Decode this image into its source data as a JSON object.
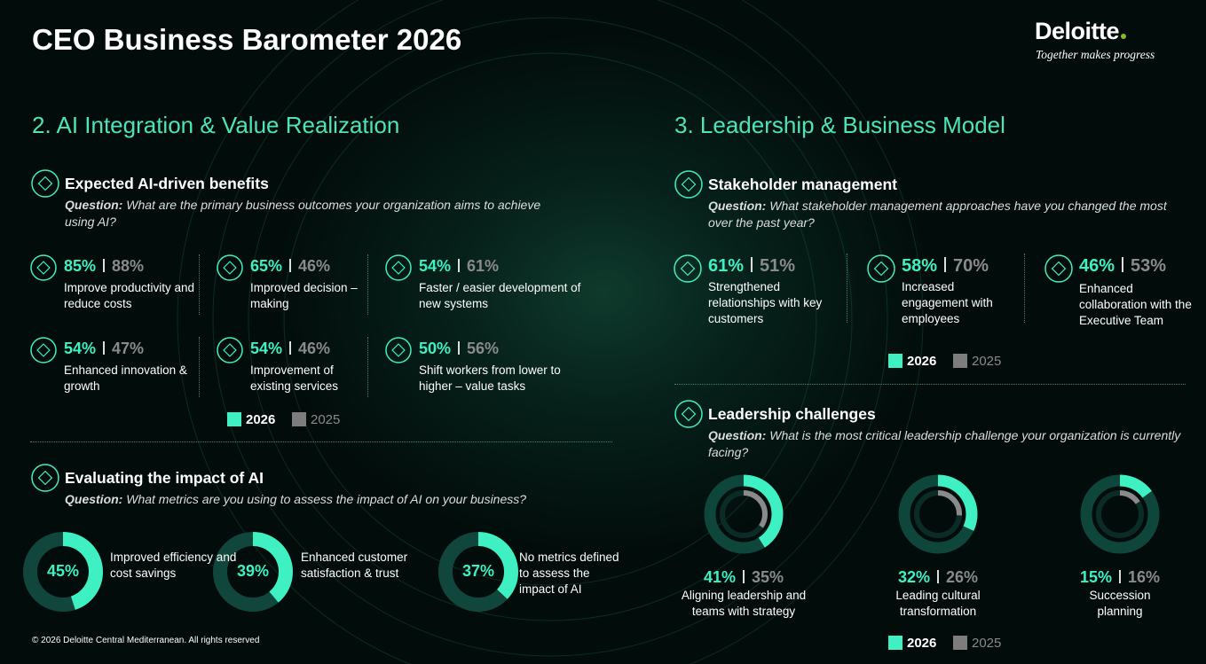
{
  "header": {
    "title": "CEO Business Barometer 2026",
    "brand": "Deloitte",
    "tagline": "Together makes progress"
  },
  "sections": [
    {
      "title": "2. AI Integration & Value Realization",
      "blocks": [
        {
          "heading": "Expected AI-driven benefits",
          "question_label": "Question:",
          "question": "What are the primary business outcomes your organization aims to achieve using AI?",
          "items": [
            {
              "current": {
                "value": 85,
                "label": "85%"
              },
              "previous": {
                "value": 88,
                "label": "88%"
              },
              "label": "Improve productivity and reduce costs"
            },
            {
              "current": {
                "value": 65,
                "label": "65%"
              },
              "previous": {
                "value": 46,
                "label": "46%"
              },
              "label": "Improved decision – making"
            },
            {
              "current": {
                "value": 54,
                "label": "54%"
              },
              "previous": {
                "value": 61,
                "label": "61%"
              },
              "label": "Faster / easier development of new systems"
            },
            {
              "current": {
                "value": 54,
                "label": "54%"
              },
              "previous": {
                "value": 47,
                "label": "47%"
              },
              "label": "Enhanced innovation & growth"
            },
            {
              "current": {
                "value": 54,
                "label": "54%"
              },
              "previous": {
                "value": 46,
                "label": "46%"
              },
              "label": "Improvement of existing services"
            },
            {
              "current": {
                "value": 50,
                "label": "50%"
              },
              "previous": {
                "value": 56,
                "label": "56%"
              },
              "label": "Shift workers from lower to higher – value tasks"
            }
          ],
          "legend": [
            {
              "name": "2026",
              "color": "#3ff0c3"
            },
            {
              "name": "2025",
              "color": "#7d7d7d"
            }
          ]
        },
        {
          "heading": "Evaluating the impact of AI",
          "question_label": "Question:",
          "question": "What metrics are you using to assess the impact of AI on your business?",
          "donuts": [
            {
              "current": {
                "value": 45,
                "label": "45%"
              },
              "label": "Improved efficiency and cost savings"
            },
            {
              "current": {
                "value": 39,
                "label": "39%"
              },
              "label": "Enhanced customer satisfaction & trust"
            },
            {
              "current": {
                "value": 37,
                "label": "37%"
              },
              "label": "No metrics defined to assess the impact of AI"
            }
          ]
        }
      ]
    },
    {
      "title": "3. Leadership & Business Model",
      "blocks": [
        {
          "heading": "Stakeholder management",
          "question_label": "Question:",
          "question": "What stakeholder management approaches have you changed the most over the past year?",
          "items": [
            {
              "current": {
                "value": 61,
                "label": "61%"
              },
              "previous": {
                "value": 51,
                "label": "51%"
              },
              "label": "Strengthened relationships with key customers"
            },
            {
              "current": {
                "value": 58,
                "label": "58%"
              },
              "previous": {
                "value": 70,
                "label": "70%"
              },
              "label": "Increased engagement with employees"
            },
            {
              "current": {
                "value": 46,
                "label": "46%"
              },
              "previous": {
                "value": 53,
                "label": "53%"
              },
              "label": "Enhanced collaboration with the Executive Team"
            }
          ],
          "legend": [
            {
              "name": "2026",
              "color": "#3ff0c3"
            },
            {
              "name": "2025",
              "color": "#7d7d7d"
            }
          ]
        },
        {
          "heading": "Leadership challenges",
          "question_label": "Question:",
          "question": "What is the most critical leadership challenge your organization is currently facing?",
          "donuts": [
            {
              "current": {
                "value": 41,
                "label": "41%"
              },
              "previous": {
                "value": 35,
                "label": "35%"
              },
              "label": "Aligning leadership and teams with strategy"
            },
            {
              "current": {
                "value": 32,
                "label": "32%"
              },
              "previous": {
                "value": 26,
                "label": "26%"
              },
              "label": "Leading cultural transformation"
            },
            {
              "current": {
                "value": 15,
                "label": "15%"
              },
              "previous": {
                "value": 16,
                "label": "16%"
              },
              "label": "Succession planning"
            }
          ],
          "legend": [
            {
              "name": "2026",
              "color": "#3ff0c3"
            },
            {
              "name": "2025",
              "color": "#7d7d7d"
            }
          ]
        }
      ]
    }
  ],
  "footer": "© 2026 Deloitte Central Mediterranean. All rights reserved"
}
